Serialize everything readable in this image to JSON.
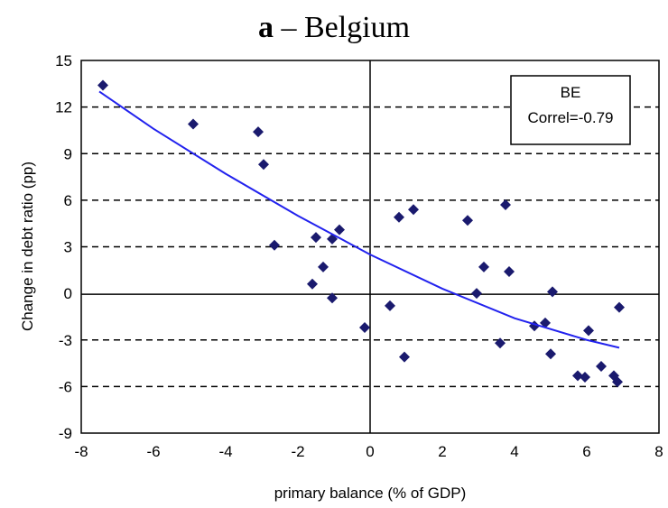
{
  "chart_data": {
    "type": "scatter",
    "title_lead": "a",
    "title_rest": " – Belgium",
    "xlabel": "primary balance (% of GDP)",
    "ylabel": "Change in debt ratio (pp)",
    "xlim": [
      -8,
      8
    ],
    "ylim": [
      -9,
      15
    ],
    "xticks": [
      "-8",
      "-6",
      "-4",
      "-2",
      "0",
      "2",
      "4",
      "6",
      "8"
    ],
    "yticks": [
      "15",
      "12",
      "9",
      "6",
      "3",
      "0",
      "-3",
      "-6",
      "-9"
    ],
    "gridlines": "dashed horizontal at 12, 9, 6, 3, -3, -6",
    "legend": {
      "line1": "BE",
      "line2": "Correl=-0.79",
      "placement": "top-right"
    },
    "colors": {
      "points": "#1a1a6e",
      "trend": "#2222ee",
      "grid": "#000000"
    },
    "points": [
      {
        "x": -7.4,
        "y": 13.4
      },
      {
        "x": -4.9,
        "y": 10.9
      },
      {
        "x": -3.1,
        "y": 10.4
      },
      {
        "x": -2.95,
        "y": 8.3
      },
      {
        "x": -2.65,
        "y": 3.1
      },
      {
        "x": -1.5,
        "y": 3.6
      },
      {
        "x": -1.3,
        "y": 1.7
      },
      {
        "x": -1.6,
        "y": 0.6
      },
      {
        "x": -1.05,
        "y": 3.5
      },
      {
        "x": -0.85,
        "y": 4.1
      },
      {
        "x": -1.05,
        "y": -0.3
      },
      {
        "x": -0.15,
        "y": -2.2
      },
      {
        "x": 0.55,
        "y": -0.8
      },
      {
        "x": 0.8,
        "y": 4.9
      },
      {
        "x": 1.2,
        "y": 5.4
      },
      {
        "x": 0.95,
        "y": -4.1
      },
      {
        "x": 2.7,
        "y": 4.7
      },
      {
        "x": 2.95,
        "y": 0.0
      },
      {
        "x": 3.15,
        "y": 1.7
      },
      {
        "x": 3.75,
        "y": 5.7
      },
      {
        "x": 3.85,
        "y": 1.4
      },
      {
        "x": 3.6,
        "y": -3.2
      },
      {
        "x": 4.55,
        "y": -2.1
      },
      {
        "x": 4.85,
        "y": -1.9
      },
      {
        "x": 5.0,
        "y": -3.9
      },
      {
        "x": 5.05,
        "y": 0.1
      },
      {
        "x": 5.75,
        "y": -5.3
      },
      {
        "x": 5.95,
        "y": -5.4
      },
      {
        "x": 6.05,
        "y": -2.4
      },
      {
        "x": 6.4,
        "y": -4.7
      },
      {
        "x": 6.75,
        "y": -5.3
      },
      {
        "x": 6.85,
        "y": -5.7
      },
      {
        "x": 6.9,
        "y": -0.9
      }
    ],
    "trendline": [
      {
        "x": -7.5,
        "y": 13.0
      },
      {
        "x": -6,
        "y": 10.6
      },
      {
        "x": -4,
        "y": 7.7
      },
      {
        "x": -2,
        "y": 5.0
      },
      {
        "x": 0,
        "y": 2.5
      },
      {
        "x": 2,
        "y": 0.3
      },
      {
        "x": 4,
        "y": -1.6
      },
      {
        "x": 6,
        "y": -3.0
      },
      {
        "x": 6.9,
        "y": -3.5
      }
    ]
  }
}
